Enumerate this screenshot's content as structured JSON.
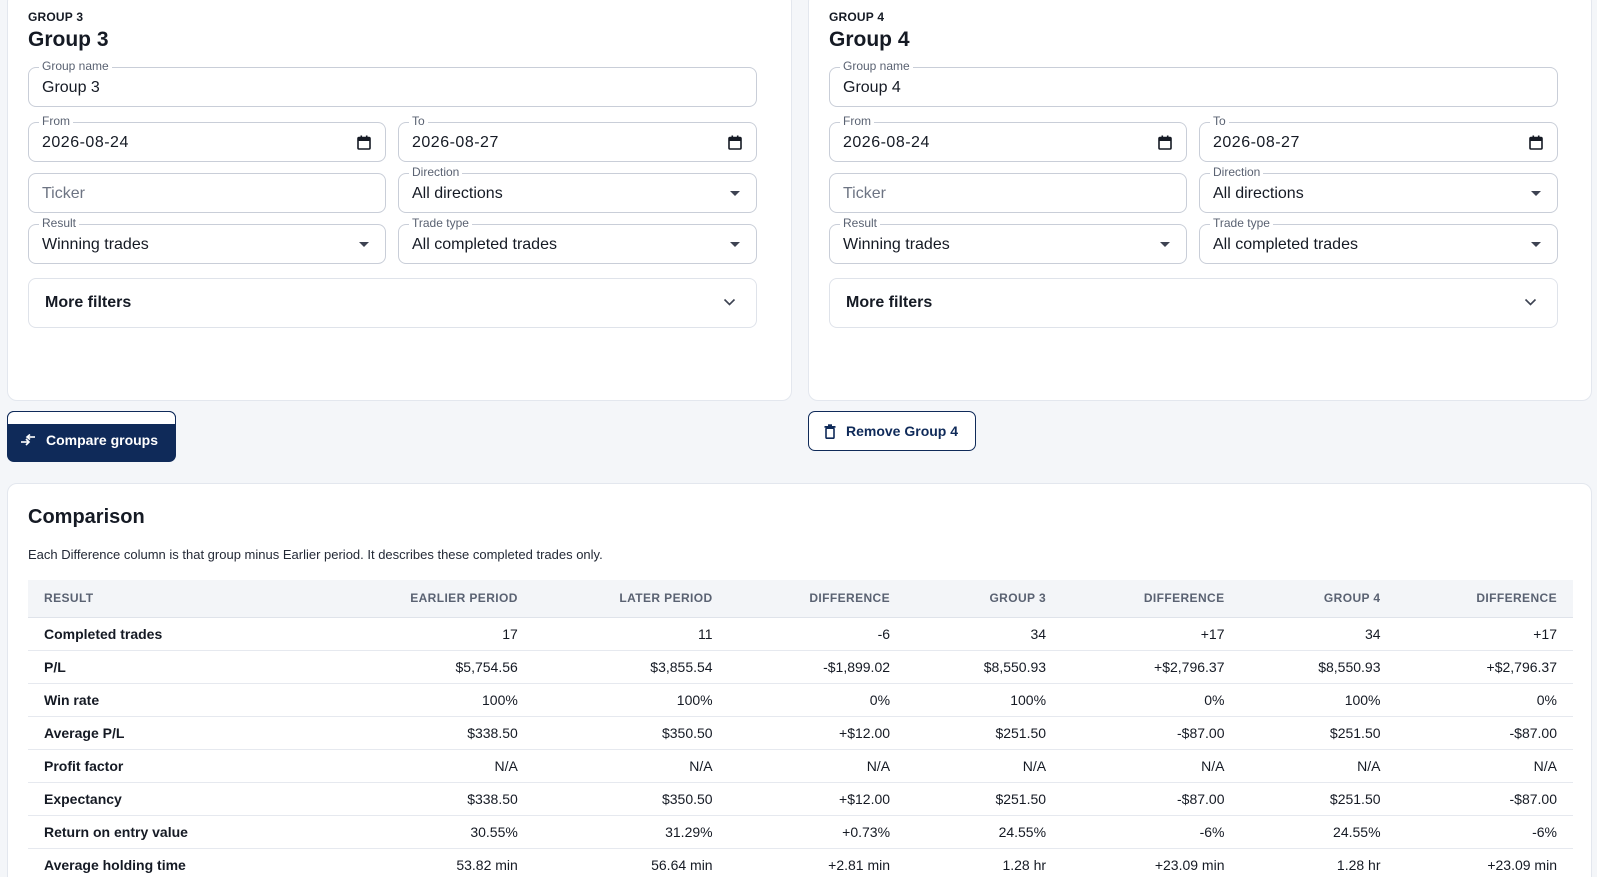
{
  "groups": [
    {
      "tag": "GROUP 3",
      "title": "Group 3",
      "name_label": "Group name",
      "name_value": "Group 3",
      "from_label": "From",
      "from_value": "2026-08-24",
      "to_label": "To",
      "to_value": "2026-08-27",
      "ticker_placeholder": "Ticker",
      "direction_label": "Direction",
      "direction_value": "All directions",
      "result_label": "Result",
      "result_value": "Winning trades",
      "trade_type_label": "Trade type",
      "trade_type_value": "All completed trades",
      "more_filters": "More filters"
    },
    {
      "tag": "GROUP 4",
      "title": "Group 4",
      "name_label": "Group name",
      "name_value": "Group 4",
      "from_label": "From",
      "from_value": "2026-08-24",
      "to_label": "To",
      "to_value": "2026-08-27",
      "ticker_placeholder": "Ticker",
      "direction_label": "Direction",
      "direction_value": "All directions",
      "result_label": "Result",
      "result_value": "Winning trades",
      "trade_type_label": "Trade type",
      "trade_type_value": "All completed trades",
      "more_filters": "More filters"
    }
  ],
  "actions": {
    "compare_label": "Compare groups",
    "compare_icon": "compare-arrows-icon",
    "remove_label": "Remove Group 4",
    "remove_icon": "trash-icon"
  },
  "comparison": {
    "title": "Comparison",
    "note": "Each Difference column is that group minus Earlier period. It describes these completed trades only.",
    "columns": [
      "RESULT",
      "EARLIER PERIOD",
      "LATER PERIOD",
      "DIFFERENCE",
      "GROUP 3",
      "DIFFERENCE",
      "GROUP 4",
      "DIFFERENCE"
    ],
    "rows": [
      {
        "label": "Completed trades",
        "cells": [
          {
            "v": "17",
            "tone": ""
          },
          {
            "v": "11",
            "tone": ""
          },
          {
            "v": "-6",
            "tone": ""
          },
          {
            "v": "34",
            "tone": ""
          },
          {
            "v": "+17",
            "tone": ""
          },
          {
            "v": "34",
            "tone": ""
          },
          {
            "v": "+17",
            "tone": ""
          }
        ]
      },
      {
        "label": "P/L",
        "cells": [
          {
            "v": "$5,754.56",
            "tone": "pos"
          },
          {
            "v": "$3,855.54",
            "tone": "pos"
          },
          {
            "v": "-$1,899.02",
            "tone": "neg"
          },
          {
            "v": "$8,550.93",
            "tone": "pos"
          },
          {
            "v": "+$2,796.37",
            "tone": "pos"
          },
          {
            "v": "$8,550.93",
            "tone": "pos"
          },
          {
            "v": "+$2,796.37",
            "tone": "pos"
          }
        ]
      },
      {
        "label": "Win rate",
        "cells": [
          {
            "v": "100%",
            "tone": ""
          },
          {
            "v": "100%",
            "tone": ""
          },
          {
            "v": "0%",
            "tone": ""
          },
          {
            "v": "100%",
            "tone": ""
          },
          {
            "v": "0%",
            "tone": ""
          },
          {
            "v": "100%",
            "tone": ""
          },
          {
            "v": "0%",
            "tone": ""
          }
        ]
      },
      {
        "label": "Average P/L",
        "cells": [
          {
            "v": "$338.50",
            "tone": "pos"
          },
          {
            "v": "$350.50",
            "tone": "pos"
          },
          {
            "v": "+$12.00",
            "tone": "pos"
          },
          {
            "v": "$251.50",
            "tone": "pos"
          },
          {
            "v": "-$87.00",
            "tone": "neg"
          },
          {
            "v": "$251.50",
            "tone": "pos"
          },
          {
            "v": "-$87.00",
            "tone": "neg"
          }
        ]
      },
      {
        "label": "Profit factor",
        "cells": [
          {
            "v": "N/A",
            "tone": ""
          },
          {
            "v": "N/A",
            "tone": ""
          },
          {
            "v": "N/A",
            "tone": ""
          },
          {
            "v": "N/A",
            "tone": ""
          },
          {
            "v": "N/A",
            "tone": ""
          },
          {
            "v": "N/A",
            "tone": ""
          },
          {
            "v": "N/A",
            "tone": ""
          }
        ]
      },
      {
        "label": "Expectancy",
        "cells": [
          {
            "v": "$338.50",
            "tone": "pos"
          },
          {
            "v": "$350.50",
            "tone": "pos"
          },
          {
            "v": "+$12.00",
            "tone": "pos"
          },
          {
            "v": "$251.50",
            "tone": "pos"
          },
          {
            "v": "-$87.00",
            "tone": "neg"
          },
          {
            "v": "$251.50",
            "tone": "pos"
          },
          {
            "v": "-$87.00",
            "tone": "neg"
          }
        ]
      },
      {
        "label": "Return on entry value",
        "cells": [
          {
            "v": "30.55%",
            "tone": "pos"
          },
          {
            "v": "31.29%",
            "tone": "pos"
          },
          {
            "v": "+0.73%",
            "tone": "pos"
          },
          {
            "v": "24.55%",
            "tone": "pos"
          },
          {
            "v": "-6%",
            "tone": "neg"
          },
          {
            "v": "24.55%",
            "tone": "pos"
          },
          {
            "v": "-6%",
            "tone": "neg"
          }
        ]
      },
      {
        "label": "Average holding time",
        "cells": [
          {
            "v": "53.82 min",
            "tone": ""
          },
          {
            "v": "56.64 min",
            "tone": ""
          },
          {
            "v": "+2.81 min",
            "tone": ""
          },
          {
            "v": "1.28 hr",
            "tone": ""
          },
          {
            "v": "+23.09 min",
            "tone": ""
          },
          {
            "v": "1.28 hr",
            "tone": ""
          },
          {
            "v": "+23.09 min",
            "tone": ""
          }
        ]
      }
    ]
  },
  "colors": {
    "navy": "#0f2a59",
    "positive": "#2e7d32",
    "negative": "#c62828"
  }
}
